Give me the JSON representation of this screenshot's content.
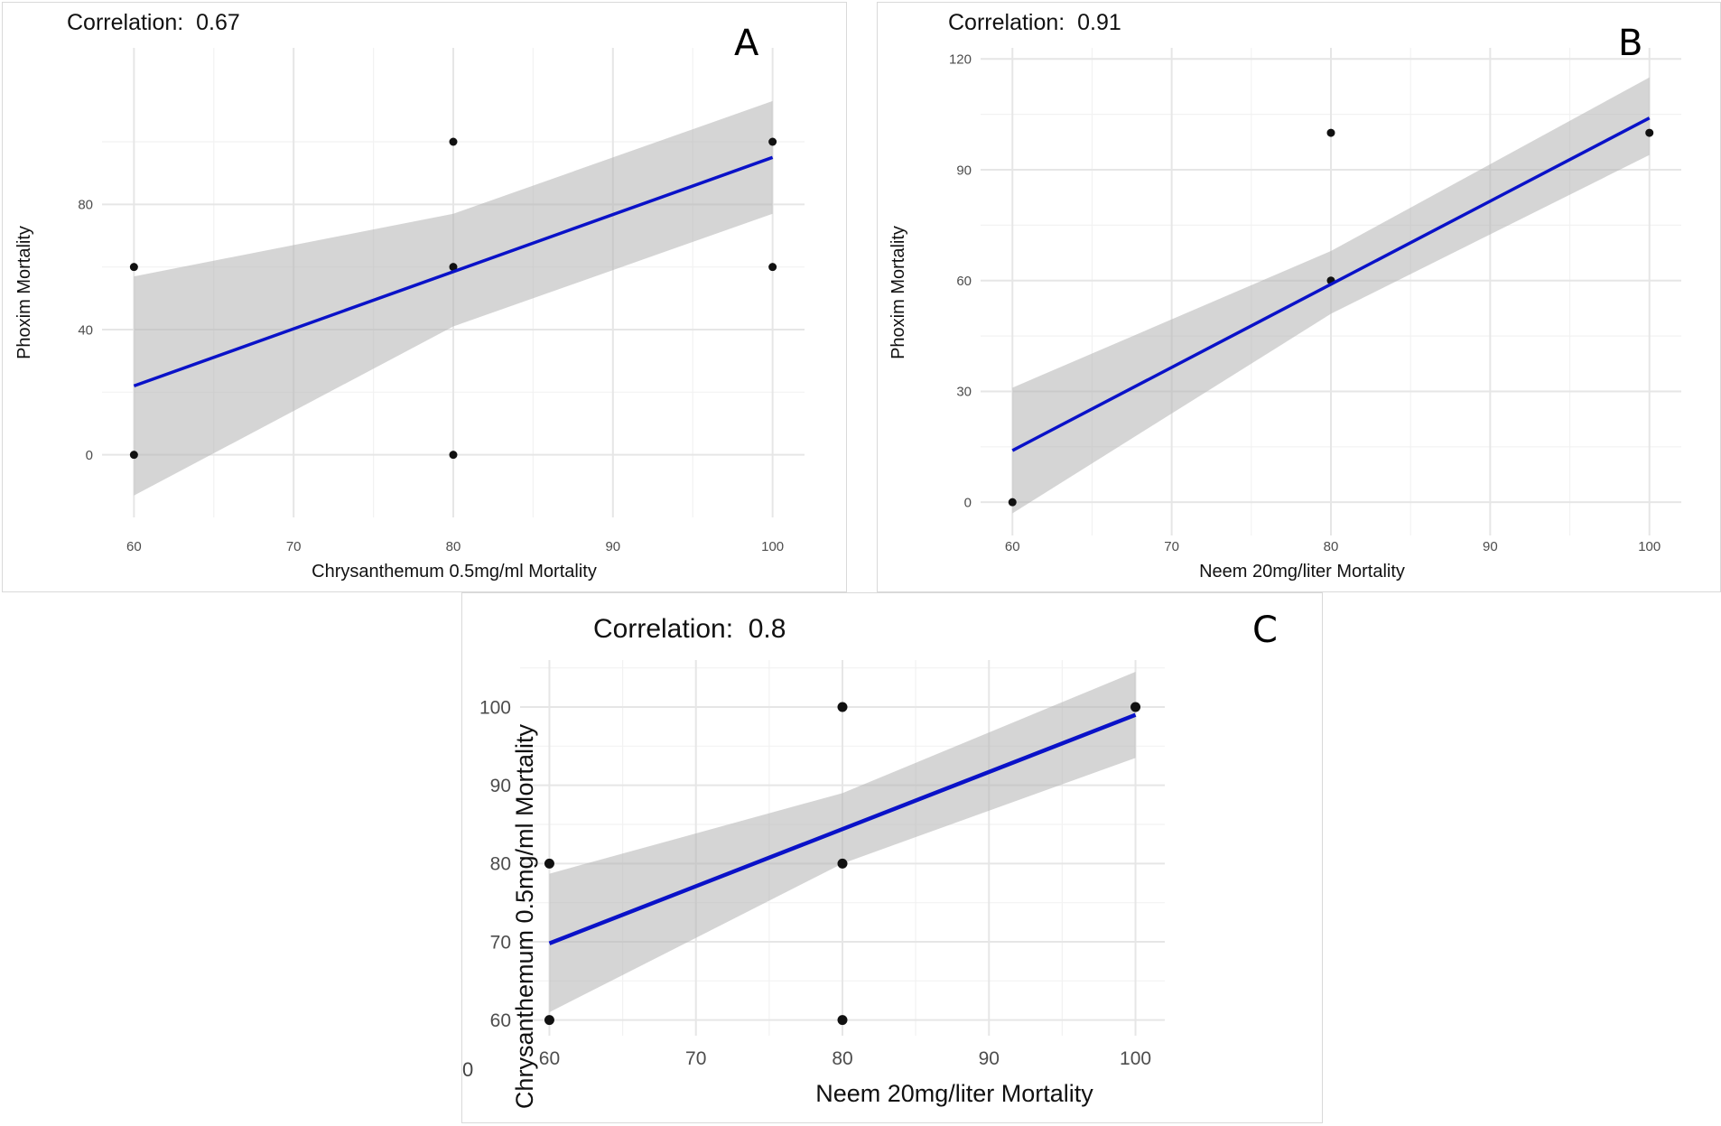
{
  "chart_data": [
    {
      "id": "A",
      "type": "scatter",
      "panel_label": "A",
      "correlation_label": "Correlation:",
      "correlation_value": "0.67",
      "xlabel": "Chrysanthemum 0.5mg/ml Mortality",
      "ylabel": "Phoxim Mortality",
      "xlim": [
        58,
        102
      ],
      "ylim": [
        -20,
        130
      ],
      "xticks": [
        60,
        70,
        80,
        90,
        100
      ],
      "yticks": [
        0,
        40,
        80
      ],
      "points": [
        [
          60,
          0
        ],
        [
          60,
          60
        ],
        [
          80,
          0
        ],
        [
          80,
          60
        ],
        [
          80,
          100
        ],
        [
          100,
          60
        ],
        [
          100,
          100
        ]
      ],
      "fit_line": {
        "x": [
          60,
          100
        ],
        "y": [
          22,
          95
        ],
        "color": "#0a12c8"
      },
      "confidence_band": {
        "x": [
          60,
          80,
          100
        ],
        "lower": [
          -13,
          41,
          77
        ],
        "upper": [
          57,
          77,
          113
        ]
      }
    },
    {
      "id": "B",
      "type": "scatter",
      "panel_label": "B",
      "correlation_label": "Correlation:",
      "correlation_value": "0.91",
      "xlabel": "Neem 20mg/liter Mortality",
      "ylabel": "Phoxim Mortality",
      "xlim": [
        58,
        102
      ],
      "ylim": [
        -9,
        123
      ],
      "xticks": [
        60,
        70,
        80,
        90,
        100
      ],
      "yticks": [
        0,
        30,
        60,
        90,
        120
      ],
      "points": [
        [
          60,
          0
        ],
        [
          80,
          60
        ],
        [
          80,
          100
        ],
        [
          100,
          100
        ]
      ],
      "fit_line": {
        "x": [
          60,
          100
        ],
        "y": [
          14,
          104
        ],
        "color": "#0a12c8"
      },
      "confidence_band": {
        "x": [
          60,
          80,
          100
        ],
        "lower": [
          -3,
          51,
          94
        ],
        "upper": [
          31,
          68,
          115
        ]
      }
    },
    {
      "id": "C",
      "type": "scatter",
      "panel_label": "C",
      "correlation_label": "Correlation:",
      "correlation_value": "0.8",
      "xlabel": "Neem 20mg/liter Mortality",
      "ylabel": "Chrysanthemum 0.5mg/ml Mortality",
      "xlim": [
        58,
        102
      ],
      "ylim": [
        58,
        106
      ],
      "xticks": [
        60,
        70,
        80,
        90,
        100
      ],
      "yticks": [
        60,
        70,
        80,
        90,
        100
      ],
      "points": [
        [
          60,
          60
        ],
        [
          60,
          80
        ],
        [
          80,
          60
        ],
        [
          80,
          80
        ],
        [
          80,
          100
        ],
        [
          100,
          100
        ]
      ],
      "fit_line": {
        "x": [
          60,
          100
        ],
        "y": [
          69.8,
          99
        ],
        "color": "#0a12c8"
      },
      "confidence_band": {
        "x": [
          60,
          80,
          100
        ],
        "lower": [
          61,
          80,
          93.5
        ],
        "upper": [
          78.7,
          89,
          104.5
        ]
      }
    }
  ],
  "stray_glyph": "0"
}
